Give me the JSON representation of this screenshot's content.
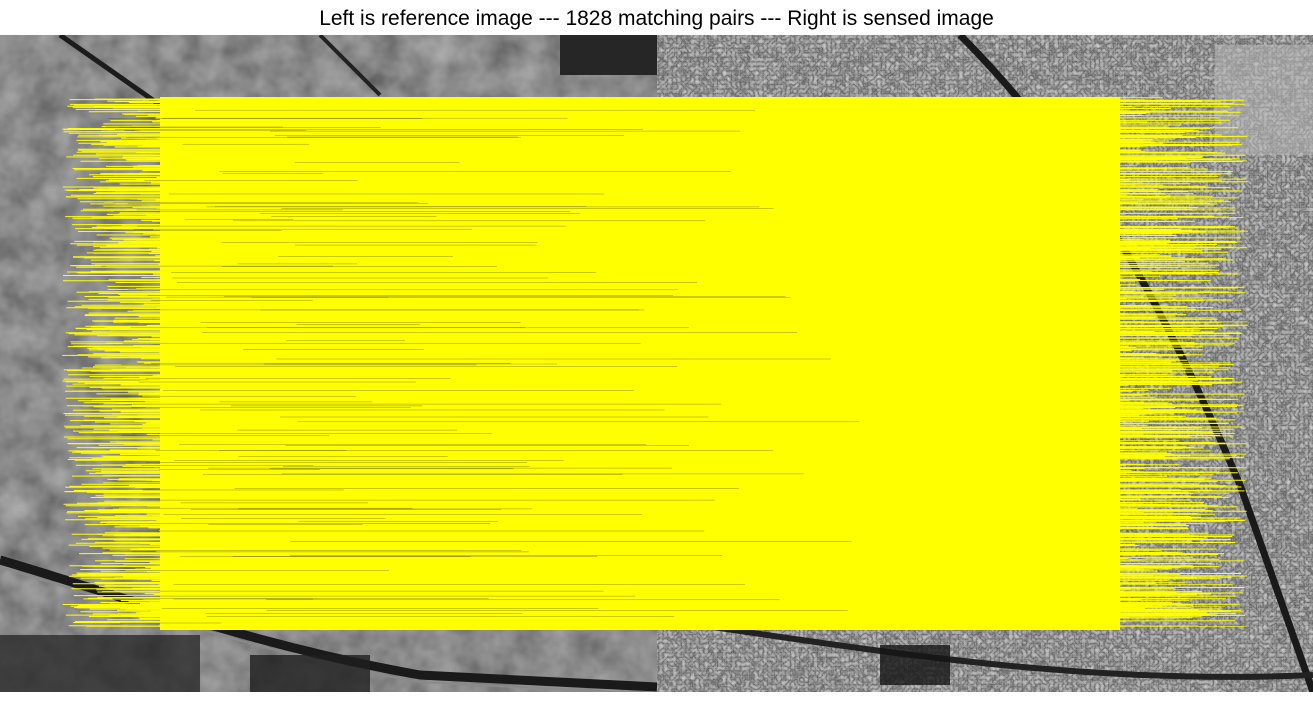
{
  "title": "Left is reference image --- 1828 matching pairs --- Right is sensed image",
  "line_color": "#ffff00",
  "left_image": {
    "kind": "optical",
    "base_color": "#3a3a3a"
  },
  "right_image": {
    "kind": "sar",
    "base_color": "#5e5e5e"
  }
}
